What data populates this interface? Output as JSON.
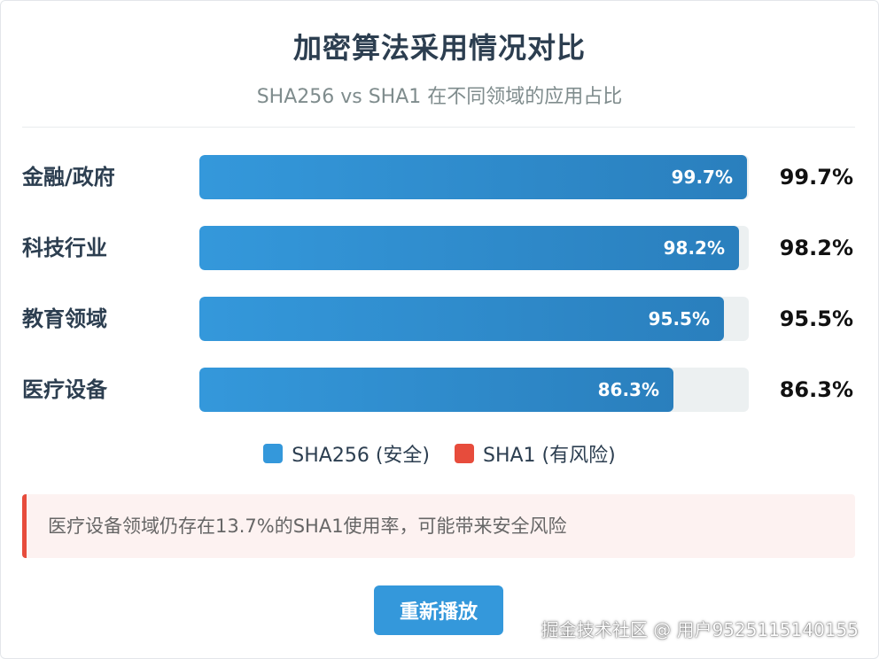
{
  "chart_data": {
    "type": "bar",
    "orientation": "horizontal",
    "title": "加密算法采用情况对比",
    "subtitle": "SHA256 vs SHA1 在不同领域的应用占比",
    "categories": [
      "金融/政府",
      "科技行业",
      "教育领域",
      "医疗设备"
    ],
    "series": [
      {
        "name": "SHA256 (安全)",
        "color": "#3498db",
        "values": [
          99.7,
          98.2,
          95.5,
          86.3
        ]
      }
    ],
    "value_labels": [
      "99.7%",
      "98.2%",
      "95.5%",
      "86.3%"
    ],
    "xlim": [
      0,
      100
    ],
    "legend": [
      {
        "label": "SHA256 (安全)",
        "color": "#3498db"
      },
      {
        "label": "SHA1 (有风险)",
        "color": "#e74c3c"
      }
    ],
    "legend_position": "bottom"
  },
  "alert": {
    "text": "医疗设备领域仍存在13.7%的SHA1使用率，可能带来安全风险",
    "color": "#e74c3c"
  },
  "button": {
    "label": "重新播放"
  },
  "watermark": {
    "text": "掘金技术社区 @ 用户9525115140155"
  }
}
